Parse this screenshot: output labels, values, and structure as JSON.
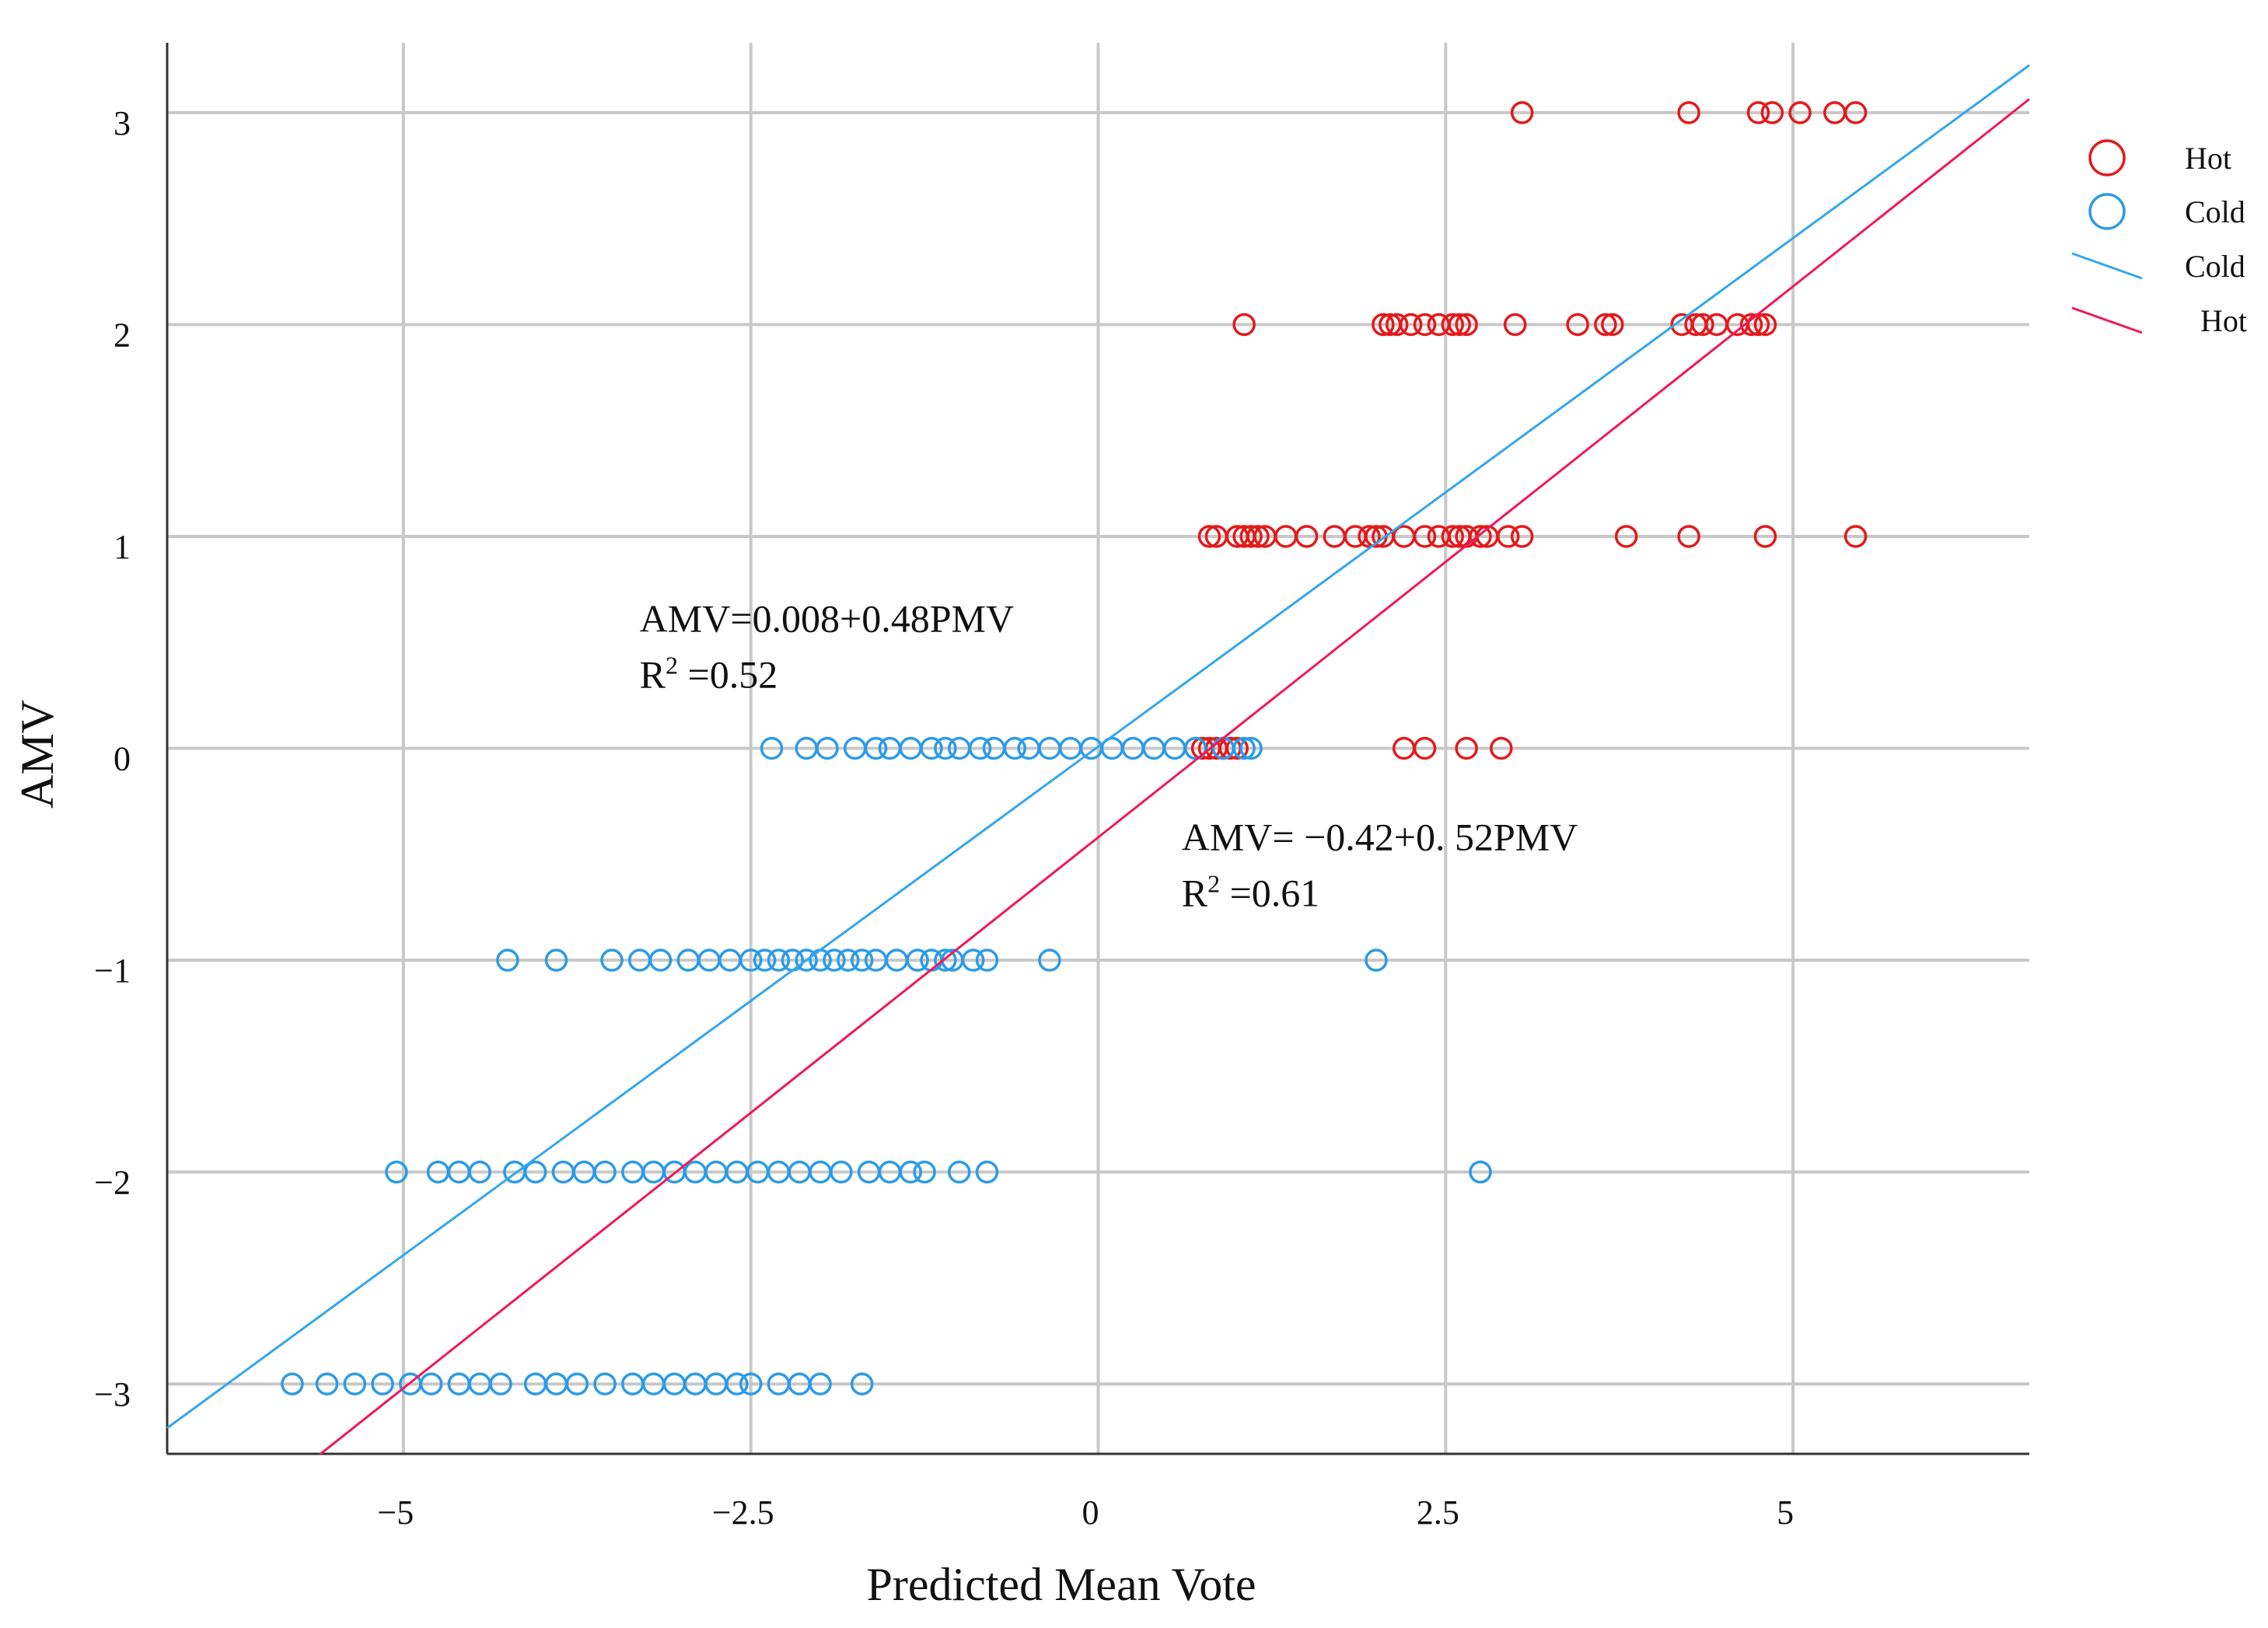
{
  "chart_data": {
    "type": "scatter",
    "xlabel": "Predicted Mean Vote",
    "ylabel": "AMV",
    "xlim": [
      -6.7,
      6.7
    ],
    "ylim": [
      -3.33,
      3.33
    ],
    "x_ticks": [
      -5,
      -2.5,
      0,
      2.5,
      5
    ],
    "x_tick_labels": [
      "−5",
      "−2.5",
      "0",
      "2.5",
      "5"
    ],
    "y_ticks": [
      -3,
      -2,
      -1,
      0,
      1,
      2,
      3
    ],
    "y_tick_labels": [
      "−3",
      "−2",
      "−1",
      "0",
      "1",
      "2",
      "3"
    ],
    "grid": true,
    "legend_position": "right",
    "colors": {
      "hot": "#e31a1c",
      "cold": "#2b9be8",
      "hot_line": "#f0195a",
      "cold_line": "#34a6ee"
    },
    "series": [
      {
        "name": "Hot",
        "marker": "circle-open",
        "points": [
          [
            3.05,
            3
          ],
          [
            4.25,
            3
          ],
          [
            4.75,
            3
          ],
          [
            4.85,
            3
          ],
          [
            5.05,
            3
          ],
          [
            5.3,
            3
          ],
          [
            5.45,
            3
          ],
          [
            1.05,
            2
          ],
          [
            2.05,
            2
          ],
          [
            2.1,
            2
          ],
          [
            2.15,
            2
          ],
          [
            2.25,
            2
          ],
          [
            2.35,
            2
          ],
          [
            2.45,
            2
          ],
          [
            2.55,
            2
          ],
          [
            2.6,
            2
          ],
          [
            2.65,
            2
          ],
          [
            3.0,
            2
          ],
          [
            3.45,
            2
          ],
          [
            3.65,
            2
          ],
          [
            3.7,
            2
          ],
          [
            4.2,
            2
          ],
          [
            4.3,
            2
          ],
          [
            4.35,
            2
          ],
          [
            4.45,
            2
          ],
          [
            4.6,
            2
          ],
          [
            4.7,
            2
          ],
          [
            4.75,
            2
          ],
          [
            4.8,
            2
          ],
          [
            0.8,
            1
          ],
          [
            0.85,
            1
          ],
          [
            1.0,
            1
          ],
          [
            1.05,
            1
          ],
          [
            1.1,
            1
          ],
          [
            1.15,
            1
          ],
          [
            1.2,
            1
          ],
          [
            1.35,
            1
          ],
          [
            1.5,
            1
          ],
          [
            1.7,
            1
          ],
          [
            1.85,
            1
          ],
          [
            1.95,
            1
          ],
          [
            2.0,
            1
          ],
          [
            2.05,
            1
          ],
          [
            2.2,
            1
          ],
          [
            2.35,
            1
          ],
          [
            2.45,
            1
          ],
          [
            2.55,
            1
          ],
          [
            2.6,
            1
          ],
          [
            2.65,
            1
          ],
          [
            2.75,
            1
          ],
          [
            2.8,
            1
          ],
          [
            2.95,
            1
          ],
          [
            3.05,
            1
          ],
          [
            3.8,
            1
          ],
          [
            4.25,
            1
          ],
          [
            4.8,
            1
          ],
          [
            5.45,
            1
          ],
          [
            0.7,
            0
          ],
          [
            0.75,
            0
          ],
          [
            0.8,
            0
          ],
          [
            0.85,
            0
          ],
          [
            0.9,
            0
          ],
          [
            0.95,
            0
          ],
          [
            1.0,
            0
          ],
          [
            2.2,
            0
          ],
          [
            2.35,
            0
          ],
          [
            2.65,
            0
          ],
          [
            2.9,
            0
          ]
        ]
      },
      {
        "name": "Cold",
        "marker": "circle-open",
        "points": [
          [
            -2.35,
            0
          ],
          [
            -2.1,
            0
          ],
          [
            -1.95,
            0
          ],
          [
            -1.75,
            0
          ],
          [
            -1.6,
            0
          ],
          [
            -1.5,
            0
          ],
          [
            -1.35,
            0
          ],
          [
            -1.2,
            0
          ],
          [
            -1.1,
            0
          ],
          [
            -1.0,
            0
          ],
          [
            -0.85,
            0
          ],
          [
            -0.75,
            0
          ],
          [
            -0.6,
            0
          ],
          [
            -0.5,
            0
          ],
          [
            -0.35,
            0
          ],
          [
            -0.2,
            0
          ],
          [
            -0.05,
            0
          ],
          [
            0.1,
            0
          ],
          [
            0.25,
            0
          ],
          [
            0.4,
            0
          ],
          [
            0.55,
            0
          ],
          [
            0.7,
            0
          ],
          [
            0.9,
            0
          ],
          [
            1.05,
            0
          ],
          [
            1.1,
            0
          ],
          [
            -4.25,
            -1
          ],
          [
            -3.9,
            -1
          ],
          [
            -3.5,
            -1
          ],
          [
            -3.3,
            -1
          ],
          [
            -3.15,
            -1
          ],
          [
            -2.95,
            -1
          ],
          [
            -2.8,
            -1
          ],
          [
            -2.65,
            -1
          ],
          [
            -2.5,
            -1
          ],
          [
            -2.4,
            -1
          ],
          [
            -2.3,
            -1
          ],
          [
            -2.2,
            -1
          ],
          [
            -2.1,
            -1
          ],
          [
            -2.0,
            -1
          ],
          [
            -1.9,
            -1
          ],
          [
            -1.8,
            -1
          ],
          [
            -1.7,
            -1
          ],
          [
            -1.6,
            -1
          ],
          [
            -1.45,
            -1
          ],
          [
            -1.3,
            -1
          ],
          [
            -1.2,
            -1
          ],
          [
            -1.1,
            -1
          ],
          [
            -1.05,
            -1
          ],
          [
            -0.9,
            -1
          ],
          [
            -0.8,
            -1
          ],
          [
            -0.35,
            -1
          ],
          [
            2.0,
            -1
          ],
          [
            -5.05,
            -2
          ],
          [
            -4.75,
            -2
          ],
          [
            -4.6,
            -2
          ],
          [
            -4.45,
            -2
          ],
          [
            -4.2,
            -2
          ],
          [
            -4.05,
            -2
          ],
          [
            -3.85,
            -2
          ],
          [
            -3.7,
            -2
          ],
          [
            -3.55,
            -2
          ],
          [
            -3.35,
            -2
          ],
          [
            -3.2,
            -2
          ],
          [
            -3.05,
            -2
          ],
          [
            -2.9,
            -2
          ],
          [
            -2.75,
            -2
          ],
          [
            -2.6,
            -2
          ],
          [
            -2.45,
            -2
          ],
          [
            -2.3,
            -2
          ],
          [
            -2.15,
            -2
          ],
          [
            -2.0,
            -2
          ],
          [
            -1.85,
            -2
          ],
          [
            -1.65,
            -2
          ],
          [
            -1.5,
            -2
          ],
          [
            -1.35,
            -2
          ],
          [
            -1.25,
            -2
          ],
          [
            -1.0,
            -2
          ],
          [
            -0.8,
            -2
          ],
          [
            2.75,
            -2
          ],
          [
            -5.8,
            -3
          ],
          [
            -5.55,
            -3
          ],
          [
            -5.35,
            -3
          ],
          [
            -5.15,
            -3
          ],
          [
            -4.95,
            -3
          ],
          [
            -4.8,
            -3
          ],
          [
            -4.6,
            -3
          ],
          [
            -4.45,
            -3
          ],
          [
            -4.3,
            -3
          ],
          [
            -4.05,
            -3
          ],
          [
            -3.9,
            -3
          ],
          [
            -3.75,
            -3
          ],
          [
            -3.55,
            -3
          ],
          [
            -3.35,
            -3
          ],
          [
            -3.2,
            -3
          ],
          [
            -3.05,
            -3
          ],
          [
            -2.9,
            -3
          ],
          [
            -2.75,
            -3
          ],
          [
            -2.6,
            -3
          ],
          [
            -2.5,
            -3
          ],
          [
            -2.3,
            -3
          ],
          [
            -2.15,
            -3
          ],
          [
            -2.0,
            -3
          ],
          [
            -1.7,
            -3
          ]
        ]
      }
    ],
    "fit_lines": [
      {
        "name": "Cold",
        "intercept": 0.008,
        "slope": 0.48,
        "x_range": [
          -6.7,
          6.7
        ]
      },
      {
        "name": "Hot",
        "intercept": -0.42,
        "slope": 0.52,
        "x_range": [
          -5.6,
          6.7
        ]
      }
    ],
    "annotations": [
      {
        "id": "cold",
        "equation": "AMV=0.008+0.48PMV",
        "r2_label": "R",
        "r2_sup": "2",
        "r2_value": " =0.52",
        "anchor_x": -3.3,
        "anchor_y": 0.55
      },
      {
        "id": "hot",
        "equation": "AMV= −0.42+0. 52PMV",
        "r2_label": "R",
        "r2_sup": "2",
        "r2_value": " =0.61",
        "anchor_x": 0.6,
        "anchor_y": -0.48
      }
    ],
    "legend": [
      {
        "label": "Hot",
        "kind": "marker",
        "series": "Hot"
      },
      {
        "label": "Cold",
        "kind": "marker",
        "series": "Cold"
      },
      {
        "label": "Cold",
        "kind": "line",
        "series": "Cold"
      },
      {
        "label": "Hot",
        "kind": "line",
        "series": "Hot"
      }
    ]
  }
}
